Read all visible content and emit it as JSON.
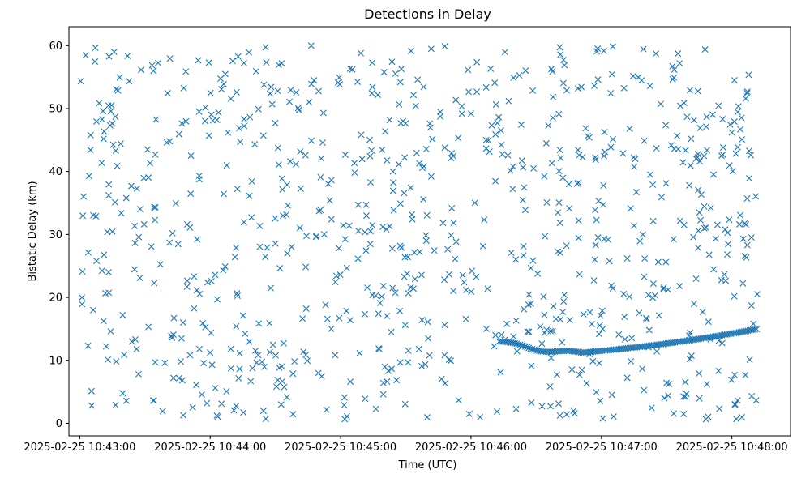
{
  "chart_data": {
    "type": "scatter",
    "title": "Detections in Delay",
    "xlabel": "Time (UTC)",
    "ylabel": "Bistatic Delay (km)",
    "marker": "x",
    "color": "#1f77b4",
    "grid": false,
    "legend": "none",
    "x_unit": "UTC time",
    "xlim": [
      "2025-02-25 10:42:55",
      "2025-02-25 10:48:27"
    ],
    "ylim": [
      -2,
      63
    ],
    "x_ticks": [
      "2025-02-25 10:43:00",
      "2025-02-25 10:44:00",
      "2025-02-25 10:45:00",
      "2025-02-25 10:46:00",
      "2025-02-25 10:47:00",
      "2025-02-25 10:48:00"
    ],
    "y_ticks": [
      "0",
      "10",
      "20",
      "30",
      "40",
      "50",
      "60"
    ],
    "track_start": "2025-02-25 10:46:13",
    "track_end": "2025-02-25 10:48:12",
    "track_delay_range_km": [
      11.2,
      15.0
    ],
    "track_shape": "delay rises from about 13 km at 10:46:13, dips to about 11.4 km near 10:46:50, then climbs steadily to about 15 km at 10:48:12",
    "clutter_count": 880,
    "clutter_time_range": [
      "2025-02-25 10:43:00",
      "2025-02-25 10:48:12"
    ],
    "clutter_delay_range_km": [
      0.5,
      60
    ],
    "clutter_note": "random false detections spread uniformly over the plot; individual points estimated only statistically"
  }
}
